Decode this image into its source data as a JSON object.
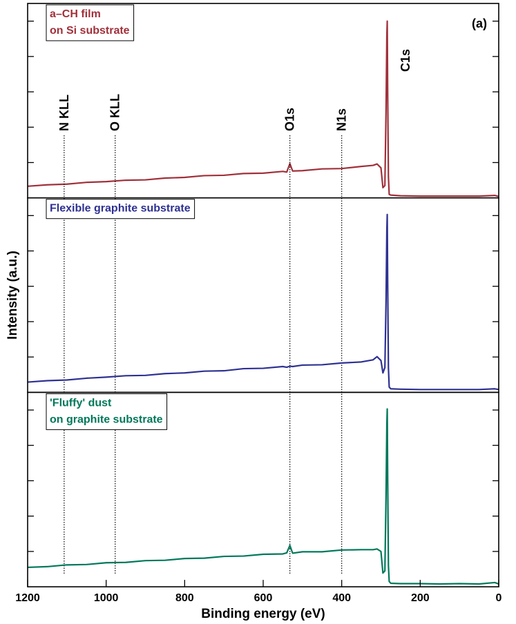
{
  "chart_data": [
    {
      "type": "line",
      "panel_label": "(a)",
      "sample_label": [
        "a–CH film",
        "on Si substrate"
      ],
      "peak_label": "C1s",
      "markers": [
        {
          "label": "N KLL",
          "x": 1107
        },
        {
          "label": "O KLL",
          "x": 977
        },
        {
          "label": "O1s",
          "x": 532
        },
        {
          "label": "N1s",
          "x": 400
        }
      ],
      "xlim": [
        1200,
        0
      ],
      "ylim": [
        0,
        5.5
      ],
      "yticks": [
        1,
        2,
        3,
        4,
        5
      ],
      "x": [
        1200,
        1150,
        1100,
        1050,
        1000,
        950,
        900,
        850,
        800,
        750,
        700,
        650,
        600,
        550,
        540,
        532,
        525,
        500,
        450,
        400,
        350,
        320,
        310,
        300,
        295,
        290,
        287,
        285,
        284,
        283,
        281,
        279,
        275,
        250,
        200,
        150,
        100,
        50,
        10,
        0
      ],
      "series": [
        {
          "color": "#a0303a",
          "values": [
            0.33,
            0.37,
            0.39,
            0.44,
            0.46,
            0.5,
            0.51,
            0.56,
            0.58,
            0.63,
            0.64,
            0.69,
            0.7,
            0.75,
            0.73,
            0.97,
            0.76,
            0.77,
            0.82,
            0.83,
            0.89,
            0.92,
            0.96,
            0.85,
            0.29,
            0.35,
            2.5,
            4.6,
            5.0,
            3.2,
            0.6,
            0.1,
            0.08,
            0.06,
            0.05,
            0.05,
            0.05,
            0.05,
            0.07,
            0.04
          ]
        }
      ]
    },
    {
      "type": "line",
      "sample_label": [
        "Flexible graphite substrate"
      ],
      "ylabel": "Intensity (a.u.)",
      "xlim": [
        1200,
        0
      ],
      "ylim": [
        0,
        5.5
      ],
      "yticks": [
        1,
        2,
        3,
        4,
        5
      ],
      "x": [
        1200,
        1150,
        1100,
        1050,
        1000,
        950,
        900,
        850,
        800,
        750,
        700,
        650,
        600,
        550,
        540,
        532,
        525,
        500,
        450,
        400,
        350,
        320,
        310,
        300,
        295,
        290,
        287,
        285,
        284,
        283,
        281,
        279,
        275,
        250,
        200,
        150,
        100,
        50,
        10,
        0
      ],
      "series": [
        {
          "color": "#2e3192",
          "values": [
            0.29,
            0.33,
            0.35,
            0.4,
            0.43,
            0.47,
            0.48,
            0.53,
            0.55,
            0.6,
            0.61,
            0.67,
            0.68,
            0.73,
            0.71,
            0.74,
            0.73,
            0.77,
            0.78,
            0.83,
            0.86,
            0.92,
            1.01,
            0.9,
            0.55,
            0.7,
            2.6,
            4.6,
            5.03,
            3.3,
            0.7,
            0.15,
            0.1,
            0.09,
            0.08,
            0.08,
            0.08,
            0.08,
            0.1,
            0.08
          ]
        }
      ]
    },
    {
      "type": "line",
      "sample_label": [
        "'Fluffy' dust",
        "on graphite substrate"
      ],
      "xlabel": "Binding energy (eV)",
      "xlim": [
        1200,
        0
      ],
      "xticks": [
        1200,
        1000,
        800,
        600,
        400,
        200,
        0
      ],
      "ylim": [
        0,
        5.5
      ],
      "yticks": [
        1,
        2,
        3,
        4,
        5
      ],
      "x": [
        1200,
        1150,
        1100,
        1050,
        1000,
        950,
        900,
        850,
        800,
        750,
        700,
        650,
        600,
        550,
        540,
        532,
        525,
        500,
        450,
        400,
        350,
        320,
        310,
        300,
        295,
        290,
        287,
        285,
        284,
        283,
        281,
        279,
        275,
        250,
        200,
        150,
        100,
        50,
        10,
        0
      ],
      "series": [
        {
          "color": "#00785a",
          "values": [
            0.55,
            0.57,
            0.62,
            0.63,
            0.68,
            0.69,
            0.74,
            0.75,
            0.8,
            0.81,
            0.86,
            0.87,
            0.92,
            0.93,
            0.96,
            1.17,
            0.95,
            0.99,
            0.99,
            1.04,
            1.05,
            1.05,
            1.07,
            1.0,
            0.39,
            0.45,
            2.6,
            4.6,
            5.03,
            3.3,
            0.6,
            0.15,
            0.1,
            0.09,
            0.09,
            0.08,
            0.09,
            0.08,
            0.12,
            0.08
          ]
        }
      ]
    }
  ]
}
